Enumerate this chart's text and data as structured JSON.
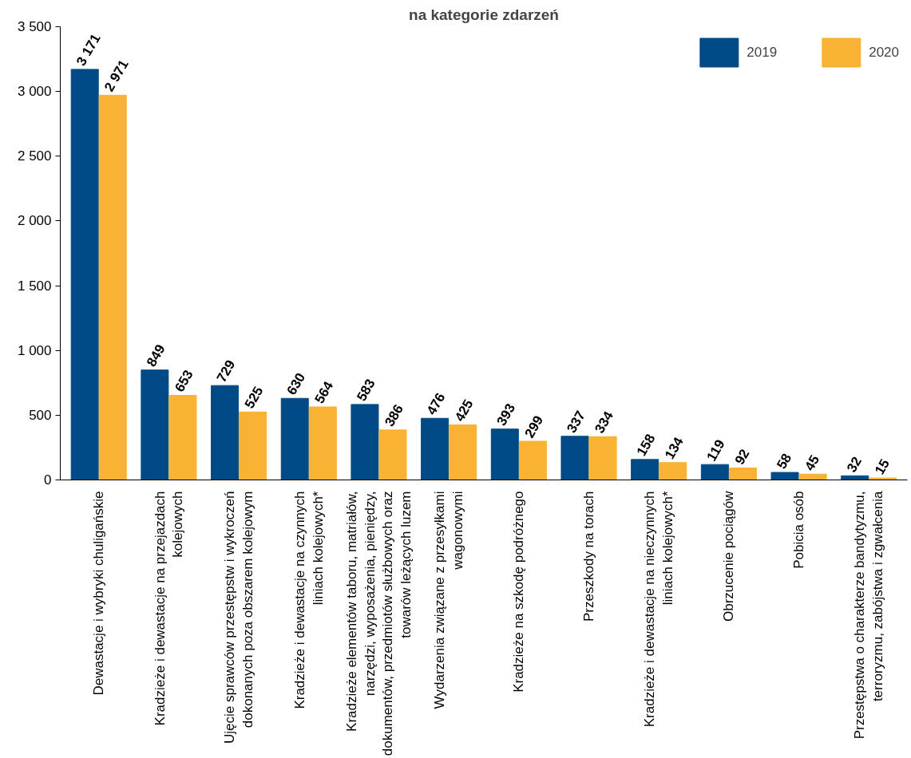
{
  "chart_data": {
    "type": "bar",
    "title": "na kategorie zdarzeń",
    "categories": [
      "Dewastacje i wybryki chuligańskie",
      "Kradzieże i dewastacje na przejazdach kolejowych",
      "Ujęcie sprawców przestępstw i wykroczeń dokonanych poza obszarem kolejowym",
      "Kradzieże i dewastacje na czynnych liniach kolejowych*",
      "Kradzieże elementów taboru, matriałów, narzędzi, wyposażenia, pieniędzy, dokumentów, przedmiotów służbowych oraz towarów leżących luzem",
      "Wydarzenia związane z przesyłkami wagonowymi",
      "Kradzieże na szkodę podróżnego",
      "Przeszkody na torach",
      "Kradzieże i dewastacje na nieczynnych liniach kolejowych*",
      "Obrzucenie pociągów",
      "Pobicia osób",
      "Przestępstwa o charakterze bandytyzmu, terroryzmu, zabójstwa i zgwałcenia"
    ],
    "series": [
      {
        "name": "2019",
        "color": "#004a87",
        "values": [
          3171,
          849,
          729,
          630,
          583,
          476,
          393,
          337,
          158,
          119,
          58,
          32
        ],
        "value_labels": [
          "3 171",
          "849",
          "729",
          "630",
          "583",
          "476",
          "393",
          "337",
          "158",
          "119",
          "58",
          "32"
        ]
      },
      {
        "name": "2020",
        "color": "#f9b233",
        "values": [
          2971,
          653,
          525,
          564,
          386,
          425,
          299,
          334,
          134,
          92,
          45,
          15
        ],
        "value_labels": [
          "2 971",
          "653",
          "525",
          "564",
          "386",
          "425",
          "299",
          "334",
          "134",
          "92",
          "45",
          "15"
        ]
      }
    ],
    "ylim": [
      0,
      3500
    ],
    "yticks": [
      0,
      500,
      {
        "value": 1000,
        "label": "1 000"
      },
      {
        "value": 1500,
        "label": "1 500"
      },
      {
        "value": 2000,
        "label": "2 000"
      },
      {
        "value": 2500,
        "label": "2 500"
      },
      {
        "value": 3000,
        "label": "3 000"
      },
      {
        "value": 3500,
        "label": "3 500"
      }
    ],
    "grid": false,
    "legend": "top right"
  }
}
